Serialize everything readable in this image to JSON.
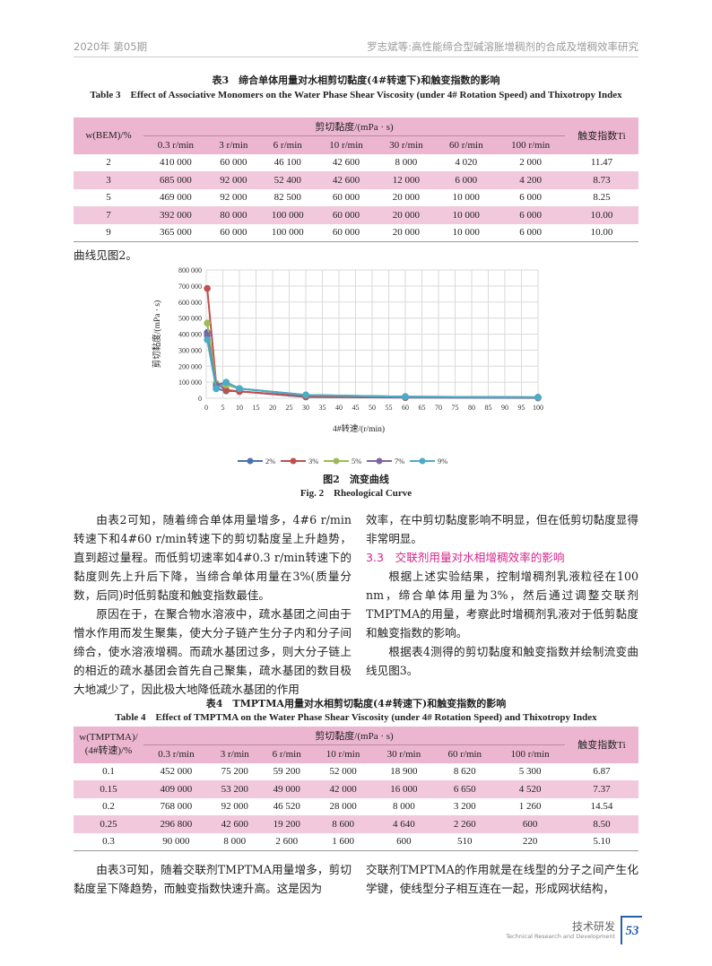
{
  "header": {
    "left": "2020年 第05期",
    "right": "罗志斌等:高性能缔合型碱溶胀增稠剂的合成及增稠效率研究"
  },
  "table3": {
    "title_cn": "表3　缔合单体用量对水相剪切黏度(4#转速下)和触变指数的影响",
    "title_en": "Table 3　Effect of Associative Monomers on the Water Phase Shear Viscosity (under 4# Rotation Speed) and Thixotropy Index",
    "row_header": "w(BEM)/%",
    "group_header": "剪切黏度/(mPa · s)",
    "ti_header": "触变指数Ti",
    "columns": [
      "0.3 r/min",
      "3 r/min",
      "6 r/min",
      "10 r/min",
      "30 r/min",
      "60 r/min",
      "100 r/min"
    ],
    "rows": [
      [
        "2",
        "410 000",
        "60 000",
        "46 100",
        "42 600",
        "8 000",
        "4 020",
        "2 000",
        "11.47"
      ],
      [
        "3",
        "685 000",
        "92 000",
        "52 400",
        "42 600",
        "12 000",
        "6 000",
        "4 200",
        "8.73"
      ],
      [
        "5",
        "469 000",
        "92 000",
        "82 500",
        "60 000",
        "20 000",
        "10 000",
        "6 000",
        "8.25"
      ],
      [
        "7",
        "392 000",
        "80 000",
        "100 000",
        "60 000",
        "20 000",
        "10 000",
        "6 000",
        "10.00"
      ],
      [
        "9",
        "365 000",
        "60 000",
        "100 000",
        "60 000",
        "20 000",
        "10 000",
        "6 000",
        "10.00"
      ]
    ]
  },
  "intro_line": "曲线见图2。",
  "chart_data": {
    "type": "line",
    "xlabel": "4#转速/(r/min)",
    "ylabel": "剪切黏度/(mPa · s)",
    "x": [
      0.3,
      3,
      6,
      10,
      30,
      60,
      100
    ],
    "xlim": [
      0,
      100
    ],
    "ylim": [
      0,
      800000
    ],
    "x_ticks": [
      "0",
      "5",
      "10",
      "15",
      "20",
      "25",
      "30",
      "35",
      "40",
      "45",
      "50",
      "55",
      "60",
      "65",
      "70",
      "75",
      "80",
      "85",
      "90",
      "95",
      "100"
    ],
    "y_ticks": [
      "0",
      "100 000",
      "200 000",
      "300 000",
      "400 000",
      "500 000",
      "600 000",
      "700 000",
      "800 000"
    ],
    "grid": true,
    "legend_position": "bottom",
    "series": [
      {
        "name": "2%",
        "color": "#4a72b0",
        "values": [
          410000,
          60000,
          46100,
          42600,
          8000,
          4020,
          2000
        ]
      },
      {
        "name": "3%",
        "color": "#c0504d",
        "values": [
          685000,
          92000,
          52400,
          42600,
          12000,
          6000,
          4200
        ]
      },
      {
        "name": "5%",
        "color": "#9bbb59",
        "values": [
          469000,
          92000,
          82500,
          60000,
          20000,
          10000,
          6000
        ]
      },
      {
        "name": "7%",
        "color": "#8064a2",
        "values": [
          392000,
          80000,
          100000,
          60000,
          20000,
          10000,
          6000
        ]
      },
      {
        "name": "9%",
        "color": "#4bacc6",
        "values": [
          365000,
          60000,
          100000,
          60000,
          20000,
          10000,
          6000
        ]
      }
    ]
  },
  "figure2": {
    "caption_cn": "图2　流变曲线",
    "caption_en": "Fig. 2　Rheological Curve"
  },
  "body_left": [
    "由表2可知，随着缔合单体用量增多，4#6 r/min转速下和4#60 r/min转速下的剪切黏度呈上升趋势，直到超过量程。而低剪切速率如4#0.3 r/min转速下的黏度则先上升后下降，当缔合单体用量在3%(质量分数，后同)时低剪黏度和触变指数最佳。",
    "原因在于，在聚合物水溶液中，疏水基团之间由于憎水作用而发生聚集，使大分子链产生分子内和分子间缔合，使水溶液增稠。而疏水基团过多，则大分子链上的相近的疏水基团会首先自己聚集，疏水基团的数目极大地减少了，因此极大地降低疏水基团的作用"
  ],
  "body_right": {
    "p0": "效率，在中剪切黏度影响不明显，但在低剪切黏度显得非常明显。",
    "section": "3.3　交联剂用量对水相增稠效率的影响",
    "p1": "根据上述实验结果，控制增稠剂乳液粒径在100 nm，缔合单体用量为3%，然后通过调整交联剂TMPTMA的用量，考察此时增稠剂乳液对于低剪黏度和触变指数的影响。",
    "p2": "根据表4测得的剪切黏度和触变指数并绘制流变曲线见图3。"
  },
  "table4": {
    "title_cn": "表4　TMPTMA用量对水相剪切黏度(4#转速下)和触变指数的影响",
    "title_en": "Table 4　Effect of TMPTMA on the Water Phase Shear Viscosity (under 4# Rotation Speed) and Thixotropy Index",
    "row_header_1": "w(TMPTMA)/",
    "row_header_2": "(4#转速)/%",
    "group_header": "剪切黏度/(mPa · s)",
    "ti_header": "触变指数Ti",
    "columns": [
      "0.3 r/min",
      "3 r/min",
      "6 r/min",
      "10 r/min",
      "30 r/min",
      "60 r/min",
      "100 r/min"
    ],
    "rows": [
      [
        "0.1",
        "452 000",
        "75 200",
        "59 200",
        "52 000",
        "18 900",
        "8 620",
        "5 300",
        "6.87"
      ],
      [
        "0.15",
        "409 000",
        "53 200",
        "49 000",
        "42 000",
        "16 000",
        "6 650",
        "4 520",
        "7.37"
      ],
      [
        "0.2",
        "768 000",
        "92 000",
        "46 520",
        "28 000",
        "8 000",
        "3 200",
        "1 260",
        "14.54"
      ],
      [
        "0.25",
        "296 800",
        "42 600",
        "19 200",
        "8 600",
        "4 640",
        "2 260",
        "600",
        "8.50"
      ],
      [
        "0.3",
        "90 000",
        "8 000",
        "2 600",
        "1 600",
        "600",
        "510",
        "220",
        "5.10"
      ]
    ]
  },
  "bottom_left": "由表3可知，随着交联剂TMPTMA用量增多，剪切黏度呈下降趋势，而触变指数快速升高。这是因为",
  "bottom_right": "交联剂TMPTMA的作用就是在线型的分子之间产生化学键，使线型分子相互连在一起，形成网状结构，",
  "footer": {
    "section_cn": "技术研发",
    "section_en": "Technical Research and Development",
    "page": "53",
    "accent": "#2a5ea8"
  }
}
